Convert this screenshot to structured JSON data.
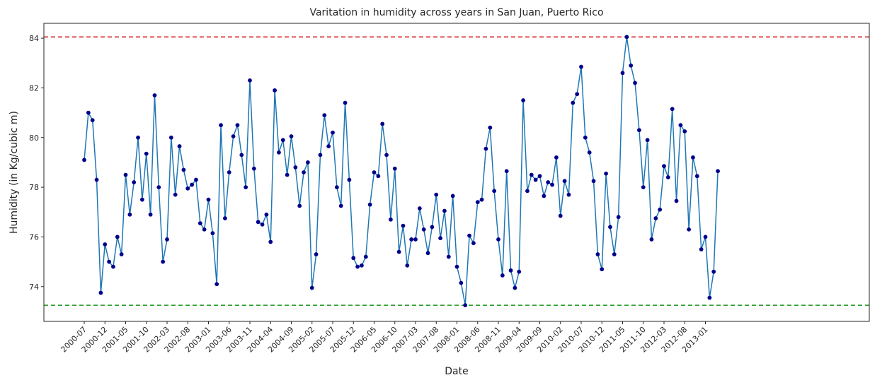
{
  "chart_data": {
    "type": "line",
    "title": "Varitation in humidity across years in San Juan, Puerto Rico",
    "xlabel": "Date",
    "ylabel": "Humidity (in Kg/cubic m)",
    "x_start": "2000-07",
    "x_ticks": [
      "2000-07",
      "2000-12",
      "2001-05",
      "2001-10",
      "2002-03",
      "2002-08",
      "2003-01",
      "2003-06",
      "2003-11",
      "2004-04",
      "2004-09",
      "2005-02",
      "2005-07",
      "2005-12",
      "2006-05",
      "2006-10",
      "2007-03",
      "2007-08",
      "2008-01",
      "2008-06",
      "2008-11",
      "2009-04",
      "2009-09",
      "2010-02",
      "2010-07",
      "2010-12",
      "2011-05",
      "2011-10",
      "2012-03",
      "2012-08",
      "2013-01"
    ],
    "y_ticks": [
      74,
      76,
      78,
      80,
      82,
      84
    ],
    "ylim": [
      72.6,
      84.6
    ],
    "grid": false,
    "line_color": "#1f77b4",
    "marker_color": "#00008b",
    "reference_lines": [
      {
        "value": 84.05,
        "color": "#d62728",
        "style": "dashed"
      },
      {
        "value": 73.25,
        "color": "#2ca02c",
        "style": "dashed"
      }
    ],
    "series": [
      {
        "values": [
          79.1,
          81.0,
          80.7,
          78.3,
          73.75,
          75.7,
          75.0,
          74.8,
          76.0,
          75.3,
          78.5,
          76.9,
          78.2,
          80.0,
          77.5,
          79.35,
          76.9,
          81.7,
          78.0,
          75.0,
          75.9,
          80.0,
          77.7,
          79.65,
          78.7,
          77.95,
          78.1,
          78.3,
          76.55,
          76.3,
          77.5,
          76.15,
          74.1,
          80.5,
          76.75,
          78.6,
          80.05,
          80.5,
          79.3,
          78.0,
          82.3,
          78.75,
          76.6,
          76.5,
          76.9,
          75.8,
          81.9,
          79.4,
          79.9,
          78.5,
          80.05,
          78.8,
          77.25,
          78.6,
          79.0,
          73.95,
          75.3,
          79.3,
          80.9,
          79.65,
          80.2,
          78.0,
          77.25,
          81.4,
          78.3,
          75.15,
          74.8,
          74.85,
          75.2,
          77.3,
          78.6,
          78.45,
          80.55,
          79.3,
          76.7,
          78.75,
          75.4,
          76.45,
          74.85,
          75.9,
          75.9,
          77.15,
          76.3,
          75.35,
          76.4,
          77.7,
          75.95,
          77.05,
          75.2,
          77.65,
          74.8,
          74.15,
          73.25,
          76.05,
          75.75,
          77.4,
          77.5,
          79.55,
          80.4,
          77.85,
          75.9,
          74.45,
          78.65,
          74.65,
          73.95,
          74.6,
          81.5,
          77.85,
          78.5,
          78.3,
          78.45,
          77.65,
          78.2,
          78.1,
          79.2,
          76.85,
          78.25,
          77.7,
          81.4,
          81.75,
          82.85,
          80.0,
          79.4,
          78.25,
          75.3,
          74.7,
          78.55,
          76.4,
          75.3,
          76.8,
          82.6,
          84.05,
          82.9,
          82.2,
          80.3,
          78.0,
          79.9,
          75.9,
          76.75,
          77.1,
          78.85,
          78.4,
          81.15,
          77.45,
          80.5,
          80.25,
          76.3,
          79.2,
          78.45,
          75.5,
          76.0,
          73.55,
          74.6,
          78.65
        ]
      }
    ]
  }
}
